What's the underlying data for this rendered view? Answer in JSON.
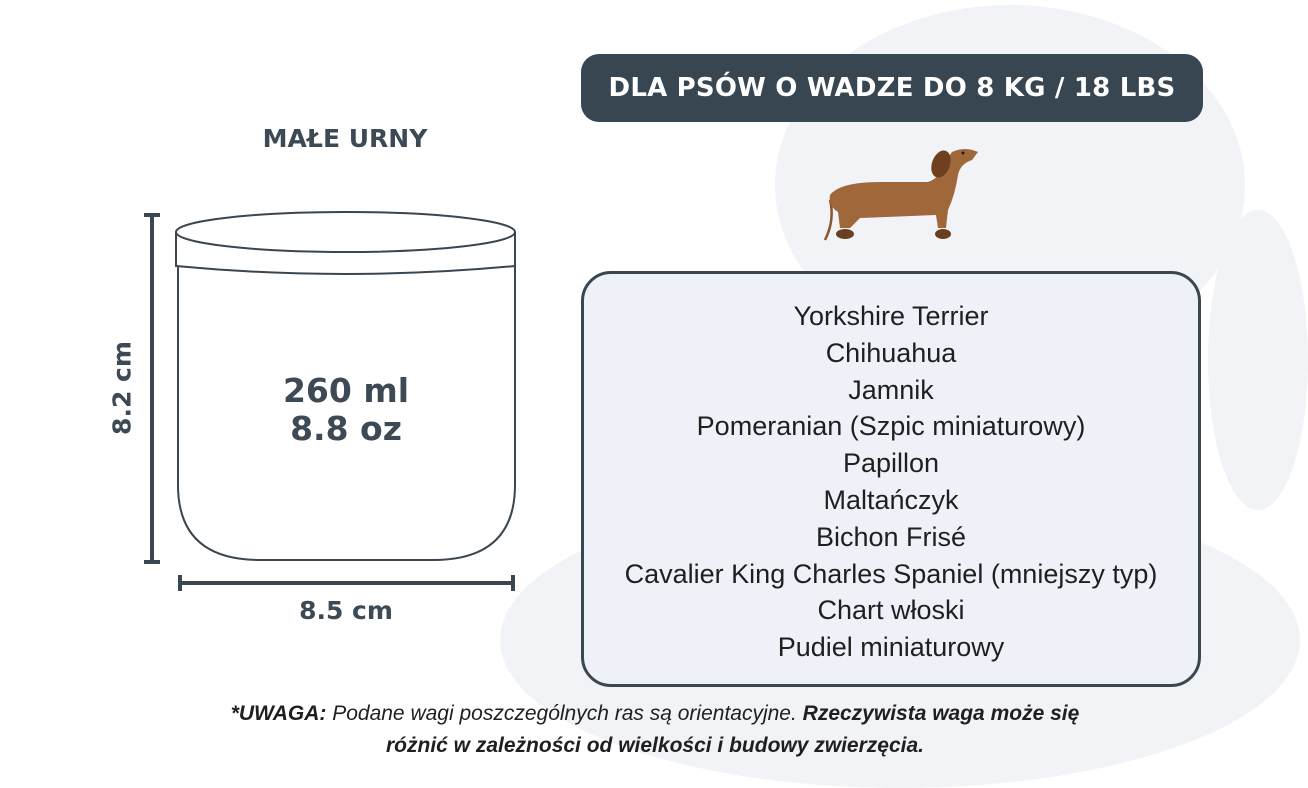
{
  "header": {
    "weight_label": "DLA PSÓW O WADZE DO 8 KG / 18 LBS"
  },
  "product": {
    "title": "MAŁE URNY",
    "volume_ml": "260 ml",
    "volume_oz": "8.8 oz",
    "height": "8.2 cm",
    "width": "8.5 cm"
  },
  "icons": {
    "dog": "dachshund-illustration",
    "background": "paw-print-watermark"
  },
  "breeds": [
    "Yorkshire Terrier",
    "Chihuahua",
    "Jamnik",
    "Pomeranian (Szpic miniaturowy)",
    "Papillon",
    "Maltańczyk",
    "Bichon Frisé",
    "Cavalier King Charles Spaniel (mniejszy typ)",
    "Chart włoski",
    "Pudiel miniaturowy"
  ],
  "note": {
    "lead": "*UWAGA:",
    "text": " Podane wagi poszczególnych ras są orientacyjne. ",
    "emphasis": "Rzeczywista waga może się różnić w zależności od wielkości i budowy zwierzęcia."
  },
  "colors": {
    "dark": "#374651",
    "box_bg": "#eef2f8",
    "paw": "#f1f3f6",
    "dog": "#a0673a"
  }
}
